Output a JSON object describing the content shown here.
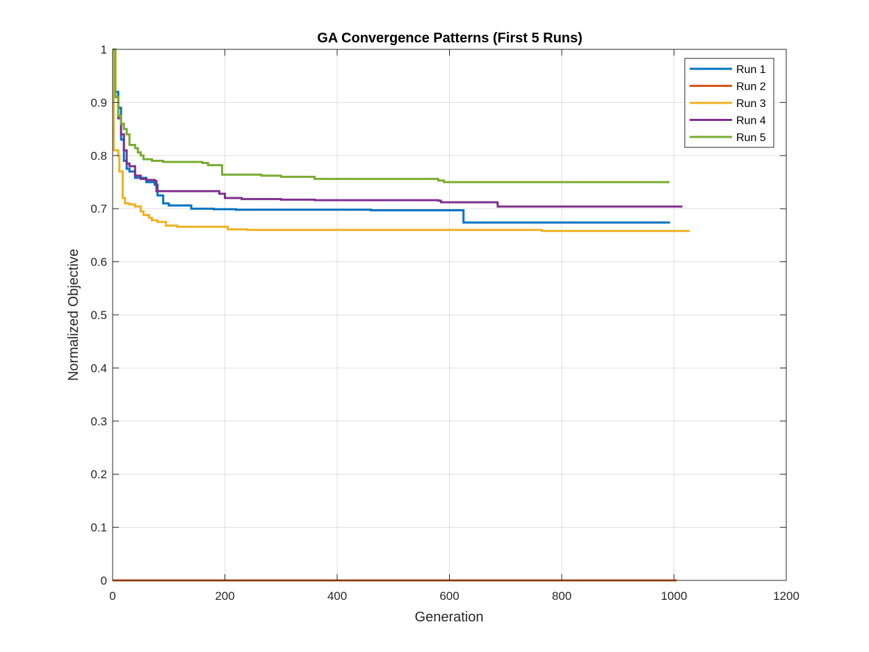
{
  "chart_data": {
    "type": "line",
    "title": "GA Convergence Patterns (First 5 Runs)",
    "xlabel": "Generation",
    "ylabel": "Normalized Objective",
    "xlim": [
      0,
      1200
    ],
    "ylim": [
      0,
      1
    ],
    "xticks": [
      0,
      200,
      400,
      600,
      800,
      1000,
      1200
    ],
    "yticks": [
      0,
      0.1,
      0.2,
      0.3,
      0.4,
      0.5,
      0.6,
      0.7,
      0.8,
      0.9,
      1
    ],
    "xtick_labels": [
      "0",
      "200",
      "400",
      "600",
      "800",
      "1000",
      "1200"
    ],
    "ytick_labels": [
      "0",
      "0.1",
      "0.2",
      "0.3",
      "0.4",
      "0.5",
      "0.6",
      "0.7",
      "0.8",
      "0.9",
      "1"
    ],
    "grid": true,
    "legend_position": "top-right",
    "series": [
      {
        "name": "Run 1",
        "color": "#0072BD",
        "step": true,
        "points": [
          [
            0,
            1.0
          ],
          [
            5,
            0.92
          ],
          [
            10,
            0.89
          ],
          [
            15,
            0.83
          ],
          [
            20,
            0.79
          ],
          [
            25,
            0.775
          ],
          [
            30,
            0.77
          ],
          [
            40,
            0.758
          ],
          [
            60,
            0.75
          ],
          [
            75,
            0.745
          ],
          [
            80,
            0.725
          ],
          [
            90,
            0.71
          ],
          [
            100,
            0.706
          ],
          [
            140,
            0.7
          ],
          [
            180,
            0.699
          ],
          [
            220,
            0.698
          ],
          [
            300,
            0.698
          ],
          [
            460,
            0.697
          ],
          [
            624,
            0.697
          ],
          [
            625,
            0.674
          ],
          [
            800,
            0.674
          ],
          [
            993,
            0.674
          ]
        ]
      },
      {
        "name": "Run 2",
        "color": "#D95319",
        "step": true,
        "points": [
          [
            0,
            0
          ],
          [
            1005,
            0
          ]
        ]
      },
      {
        "name": "Run 3",
        "color": "#EDB120",
        "step": true,
        "points": [
          [
            0,
            1.0
          ],
          [
            2,
            0.81
          ],
          [
            10,
            0.8
          ],
          [
            12,
            0.77
          ],
          [
            18,
            0.72
          ],
          [
            22,
            0.71
          ],
          [
            30,
            0.708
          ],
          [
            40,
            0.704
          ],
          [
            50,
            0.695
          ],
          [
            55,
            0.688
          ],
          [
            65,
            0.683
          ],
          [
            70,
            0.678
          ],
          [
            80,
            0.675
          ],
          [
            95,
            0.668
          ],
          [
            115,
            0.666
          ],
          [
            200,
            0.666
          ],
          [
            205,
            0.661
          ],
          [
            240,
            0.66
          ],
          [
            500,
            0.66
          ],
          [
            760,
            0.66
          ],
          [
            765,
            0.658
          ],
          [
            1028,
            0.658
          ]
        ]
      },
      {
        "name": "Run 4",
        "color": "#7E2F8E",
        "step": true,
        "points": [
          [
            0,
            1.0
          ],
          [
            5,
            0.91
          ],
          [
            10,
            0.87
          ],
          [
            15,
            0.84
          ],
          [
            20,
            0.81
          ],
          [
            25,
            0.785
          ],
          [
            30,
            0.78
          ],
          [
            40,
            0.762
          ],
          [
            50,
            0.756
          ],
          [
            60,
            0.754
          ],
          [
            75,
            0.752
          ],
          [
            78,
            0.733
          ],
          [
            100,
            0.733
          ],
          [
            190,
            0.728
          ],
          [
            200,
            0.72
          ],
          [
            230,
            0.718
          ],
          [
            300,
            0.717
          ],
          [
            360,
            0.716
          ],
          [
            500,
            0.716
          ],
          [
            580,
            0.715
          ],
          [
            585,
            0.712
          ],
          [
            685,
            0.711
          ],
          [
            686,
            0.704
          ],
          [
            1015,
            0.704
          ]
        ]
      },
      {
        "name": "Run 5",
        "color": "#77AC30",
        "step": true,
        "points": [
          [
            0,
            1.0
          ],
          [
            5,
            0.91
          ],
          [
            10,
            0.875
          ],
          [
            15,
            0.86
          ],
          [
            20,
            0.85
          ],
          [
            25,
            0.84
          ],
          [
            30,
            0.82
          ],
          [
            40,
            0.814
          ],
          [
            45,
            0.806
          ],
          [
            50,
            0.8
          ],
          [
            55,
            0.793
          ],
          [
            70,
            0.79
          ],
          [
            90,
            0.788
          ],
          [
            160,
            0.786
          ],
          [
            170,
            0.782
          ],
          [
            190,
            0.782
          ],
          [
            195,
            0.764
          ],
          [
            265,
            0.762
          ],
          [
            300,
            0.76
          ],
          [
            360,
            0.756
          ],
          [
            500,
            0.756
          ],
          [
            580,
            0.753
          ],
          [
            590,
            0.75
          ],
          [
            992,
            0.75
          ]
        ]
      }
    ]
  }
}
